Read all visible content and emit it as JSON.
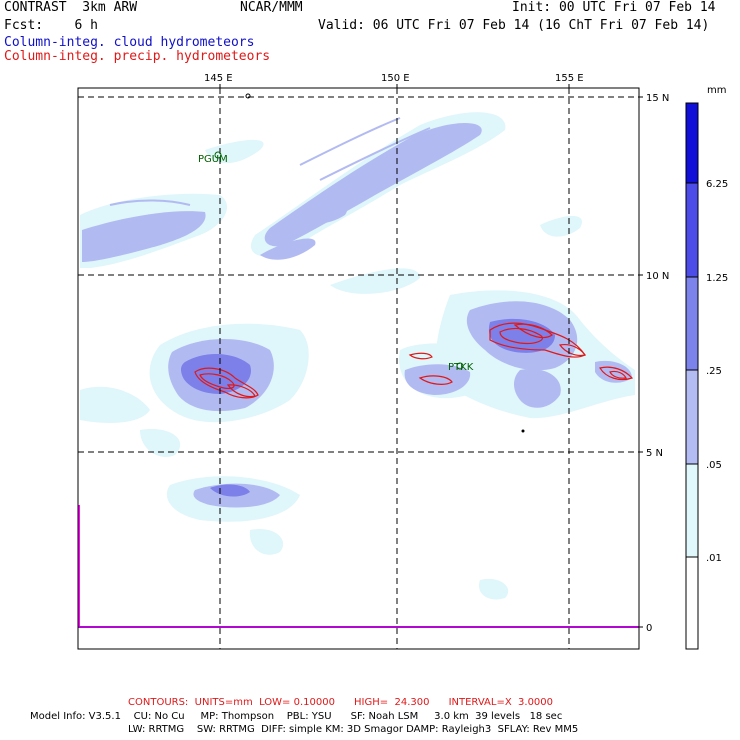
{
  "header": {
    "model": "CONTRAST  3km ARW",
    "center": "NCAR/MMM",
    "init": "Init: 00 UTC Fri 07 Feb 14",
    "fcst": "Fcst:    6 h",
    "valid": "Valid: 06 UTC Fri 07 Feb 14 (16 ChT Fri 07 Feb 14)"
  },
  "legend_lines": [
    {
      "text": "Column-integ. cloud hydrometeors",
      "color": "#1010c8"
    },
    {
      "text": "Column-integ. precip. hydrometeors",
      "color": "#e01818"
    }
  ],
  "map": {
    "lon_labels": [
      "145 E",
      "150 E",
      "155 E"
    ],
    "lat_labels": [
      "15 N",
      "10 N",
      "5 N",
      "0"
    ],
    "stations": [
      "PGUM",
      "PTKK"
    ]
  },
  "colorbar": {
    "unit": "mm",
    "levels": [
      ".01",
      ".05",
      ".25",
      "1.25",
      "6.25"
    ],
    "colors": [
      "#ffffff",
      "#e0f8fc",
      "#b4bcf4",
      "#7c84ec",
      "#4c4ce8",
      "#2424e4",
      "#1010d8"
    ]
  },
  "footer": {
    "contours": "CONTOURS:  UNITS=mm  LOW= 0.10000      HIGH=  24.300      INTERVAL=X  3.0000",
    "model_info_1": "Model Info: V3.5.1    CU: No Cu     MP: Thompson    PBL: YSU      SF: Noah LSM     3.0 km  39 levels   18 sec",
    "model_info_2": "LW: RRTMG    SW: RRTMG  DIFF: simple KM: 3D Smagor DAMP: Rayleigh3  SFLAY: Rev MM5"
  },
  "colors": {
    "cloud_light": "#dff6fb",
    "cloud_mid": "#b2baf2",
    "cloud_dark": "#7c80e8",
    "precip": "#e01818",
    "coast": "#ff00ff"
  }
}
